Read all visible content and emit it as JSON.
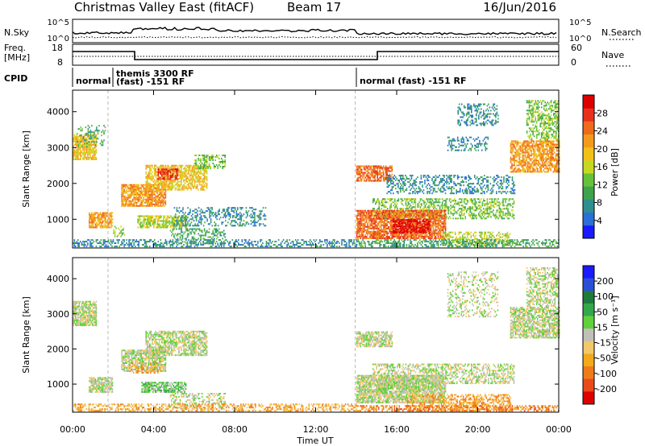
{
  "header": {
    "title": "Christmas Valley East (fitACF)",
    "beam": "Beam 17",
    "date": "16/Jun/2016"
  },
  "sky_panel": {
    "left_label": "N.Sky",
    "left_ticks": [
      "10^5",
      "10^0"
    ],
    "right_label": "N.Search",
    "right_ticks": [
      "10^5",
      "10^0"
    ]
  },
  "freq_panel": {
    "left_label_line1": "Freq.",
    "left_label_line2": "[MHz]",
    "left_ticks": [
      "18",
      "8"
    ],
    "right_label": "Nave",
    "right_ticks": [
      "60",
      "0"
    ]
  },
  "cpid": {
    "label": "CPID",
    "segments": [
      {
        "start": 0.0,
        "end": 1.75,
        "text1": "normal",
        "text2": ""
      },
      {
        "start": 1.75,
        "end": 13.95,
        "text1": "themis 3300 RF",
        "text2": "(fast) -151 RF"
      },
      {
        "start": 13.95,
        "end": 24.0,
        "text1": "normal (fast) -151 RF",
        "text2": ""
      }
    ]
  },
  "time_axis": {
    "label": "Time UT",
    "ticks": [
      "00:00",
      "04:00",
      "08:00",
      "12:00",
      "16:00",
      "20:00",
      "00:00"
    ]
  },
  "chart_data": [
    {
      "type": "heatmap",
      "name": "power",
      "ylabel": "Slant Range [km]",
      "yticks": [
        1000,
        2000,
        3000,
        4000
      ],
      "ylim": [
        200,
        4600
      ],
      "xlim": [
        0,
        24
      ],
      "colorbar": {
        "label": "Power [dB]",
        "ticks": [
          "4",
          "8",
          "12",
          "16",
          "20",
          "24",
          "28"
        ],
        "colors": [
          "#1a1aff",
          "#2b6fd9",
          "#2f8f8f",
          "#3fa34d",
          "#66c23a",
          "#c8d820",
          "#f2c019",
          "#f49a1a",
          "#f06a1c",
          "#e8301c",
          "#dd0000"
        ]
      },
      "echo_regions": [
        {
          "t": [
            0.0,
            1.2
          ],
          "r": [
            2650,
            3350
          ],
          "level": 6,
          "density": 0.8
        },
        {
          "t": [
            0.2,
            1.6
          ],
          "r": [
            3000,
            3600
          ],
          "level": 3,
          "density": 0.25
        },
        {
          "t": [
            0.8,
            2.0
          ],
          "r": [
            750,
            1200
          ],
          "level": 7,
          "density": 0.8
        },
        {
          "t": [
            2.0,
            2.6
          ],
          "r": [
            500,
            800
          ],
          "level": 4,
          "density": 0.4
        },
        {
          "t": [
            2.4,
            4.6
          ],
          "r": [
            1350,
            1950
          ],
          "level": 7,
          "density": 0.8
        },
        {
          "t": [
            3.6,
            6.6
          ],
          "r": [
            1800,
            2500
          ],
          "level": 6,
          "density": 0.7
        },
        {
          "t": [
            4.2,
            5.2
          ],
          "r": [
            2100,
            2400
          ],
          "level": 9,
          "density": 0.7
        },
        {
          "t": [
            3.2,
            5.6
          ],
          "r": [
            750,
            1100
          ],
          "level": 5,
          "density": 0.7
        },
        {
          "t": [
            4.8,
            7.5
          ],
          "r": [
            300,
            750
          ],
          "level": 3,
          "density": 0.4
        },
        {
          "t": [
            5.0,
            9.5
          ],
          "r": [
            800,
            1300
          ],
          "level": 2,
          "density": 0.35
        },
        {
          "t": [
            6.0,
            7.5
          ],
          "r": [
            2400,
            2800
          ],
          "level": 4,
          "density": 0.45
        },
        {
          "t": [
            0.0,
            14.0
          ],
          "r": [
            220,
            420
          ],
          "level": 2,
          "density": 0.45
        },
        {
          "t": [
            14.0,
            15.8
          ],
          "r": [
            2050,
            2500
          ],
          "level": 8,
          "density": 0.75
        },
        {
          "t": [
            14.8,
            21.8
          ],
          "r": [
            1000,
            1550
          ],
          "level": 4,
          "density": 0.5
        },
        {
          "t": [
            15.5,
            21.8
          ],
          "r": [
            1700,
            2200
          ],
          "level": 2,
          "density": 0.4
        },
        {
          "t": [
            14.0,
            18.4
          ],
          "r": [
            450,
            1250
          ],
          "level": 8,
          "density": 0.85
        },
        {
          "t": [
            15.8,
            17.6
          ],
          "r": [
            600,
            1000
          ],
          "level": 10,
          "density": 0.7
        },
        {
          "t": [
            18.2,
            21.6
          ],
          "r": [
            250,
            650
          ],
          "level": 5,
          "density": 0.45
        },
        {
          "t": [
            14.0,
            24.0
          ],
          "r": [
            220,
            420
          ],
          "level": 3,
          "density": 0.5
        },
        {
          "t": [
            21.6,
            24.0
          ],
          "r": [
            2300,
            3200
          ],
          "level": 7,
          "density": 0.75
        },
        {
          "t": [
            22.4,
            24.0
          ],
          "r": [
            3200,
            4300
          ],
          "level": 4,
          "density": 0.5
        },
        {
          "t": [
            18.5,
            20.5
          ],
          "r": [
            2900,
            3300
          ],
          "level": 2,
          "density": 0.35
        },
        {
          "t": [
            19.0,
            21.0
          ],
          "r": [
            3600,
            4200
          ],
          "level": 2,
          "density": 0.35
        }
      ]
    },
    {
      "type": "heatmap",
      "name": "velocity",
      "ylabel": "Slant Range [km]",
      "yticks": [
        1000,
        2000,
        3000,
        4000
      ],
      "ylim": [
        200,
        4600
      ],
      "xlim": [
        0,
        24
      ],
      "colorbar": {
        "label": "Velocity [m s⁻¹]",
        "ticks": [
          "200",
          "100",
          "50",
          "15",
          "-15",
          "-50",
          "-100",
          "-200"
        ],
        "colors": [
          "#1a1aff",
          "#2a4fd6",
          "#1e7a3a",
          "#33a84a",
          "#5fd13a",
          "#c0c0b8",
          "#f2c86a",
          "#f2a91a",
          "#f07a1a",
          "#ea4a1a",
          "#dd0000"
        ]
      },
      "echo_regions": [
        {
          "t": [
            0.0,
            1.2
          ],
          "r": [
            2650,
            3350
          ],
          "level": 5,
          "density": 0.8
        },
        {
          "t": [
            0.8,
            2.0
          ],
          "r": [
            750,
            1200
          ],
          "level": 5,
          "density": 0.8
        },
        {
          "t": [
            2.4,
            4.6
          ],
          "r": [
            1350,
            1950
          ],
          "level": 5,
          "density": 0.8
        },
        {
          "t": [
            2.8,
            4.4
          ],
          "r": [
            1300,
            1600
          ],
          "level": 7,
          "density": 0.35
        },
        {
          "t": [
            3.6,
            6.6
          ],
          "r": [
            1800,
            2500
          ],
          "level": 5,
          "density": 0.7
        },
        {
          "t": [
            3.4,
            5.6
          ],
          "r": [
            750,
            1050
          ],
          "level": 4,
          "density": 0.75
        },
        {
          "t": [
            4.8,
            7.5
          ],
          "r": [
            300,
            750
          ],
          "level": 5,
          "density": 0.4
        },
        {
          "t": [
            0.0,
            14.0
          ],
          "r": [
            220,
            420
          ],
          "level": 7,
          "density": 0.45
        },
        {
          "t": [
            14.0,
            15.8
          ],
          "r": [
            2050,
            2500
          ],
          "level": 5,
          "density": 0.75
        },
        {
          "t": [
            14.8,
            21.8
          ],
          "r": [
            1000,
            1550
          ],
          "level": 5,
          "density": 0.5
        },
        {
          "t": [
            14.0,
            18.4
          ],
          "r": [
            450,
            1250
          ],
          "level": 5,
          "density": 0.85
        },
        {
          "t": [
            16.5,
            21.6
          ],
          "r": [
            220,
            700
          ],
          "level": 7,
          "density": 0.55
        },
        {
          "t": [
            14.0,
            24.0
          ],
          "r": [
            220,
            400
          ],
          "level": 8,
          "density": 0.5
        },
        {
          "t": [
            21.6,
            24.0
          ],
          "r": [
            2300,
            3200
          ],
          "level": 5,
          "density": 0.75
        },
        {
          "t": [
            22.4,
            24.0
          ],
          "r": [
            3200,
            4300
          ],
          "level": 5,
          "density": 0.5
        },
        {
          "t": [
            18.5,
            21.0
          ],
          "r": [
            2900,
            4200
          ],
          "level": 5,
          "density": 0.3
        }
      ]
    }
  ]
}
